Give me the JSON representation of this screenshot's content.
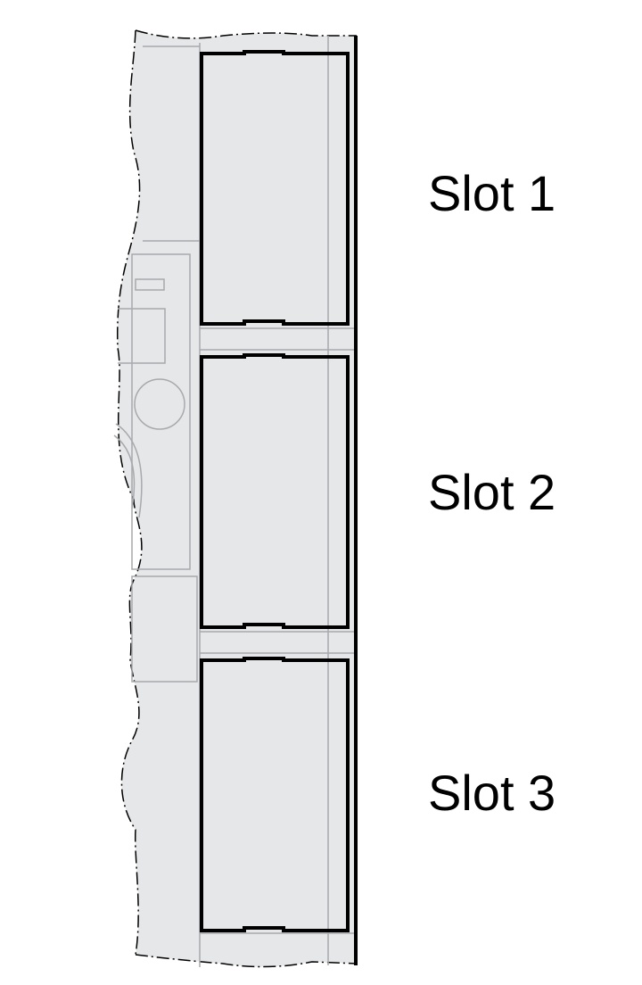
{
  "colors": {
    "panel_fill": "#e6e7e8",
    "panel_line": "#a7a9ac",
    "outline": "#000000",
    "background": "#ffffff"
  },
  "slots": [
    {
      "label": "Slot 1"
    },
    {
      "label": "Slot 2"
    },
    {
      "label": "Slot 3"
    }
  ]
}
